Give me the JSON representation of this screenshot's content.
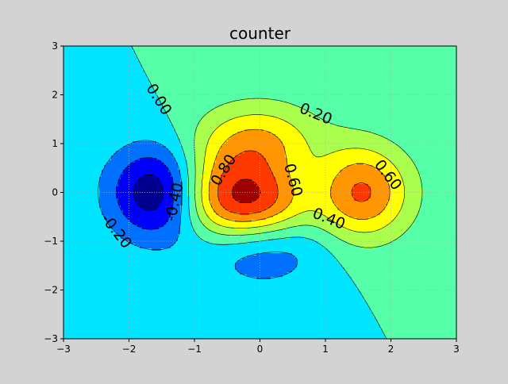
{
  "chart_data": {
    "type": "contour",
    "title": "counter",
    "xlabel": "",
    "ylabel": "",
    "xlim": [
      -3,
      3
    ],
    "ylim": [
      -3,
      3
    ],
    "grid": true,
    "x_ticks": [
      -3,
      -2,
      -1,
      0,
      1,
      2,
      3
    ],
    "x_tick_labels": [
      "−3",
      "−2",
      "−1",
      "0",
      "1",
      "2",
      "3"
    ],
    "y_ticks": [
      -3,
      -2,
      -1,
      0,
      1,
      2,
      3
    ],
    "y_tick_labels": [
      "−3",
      "−2",
      "−1",
      "0",
      "1",
      "2",
      "3"
    ],
    "levels": [
      -0.6,
      -0.4,
      -0.2,
      0.0,
      0.2,
      0.4,
      0.6,
      0.8,
      1.0
    ],
    "level_colors": [
      "#00008f",
      "#0000ff",
      "#0070ff",
      "#00e5ff",
      "#55ffa8",
      "#aaff4d",
      "#ffff00",
      "#ff9500",
      "#ff3800",
      "#a00000"
    ],
    "contour_labels": [
      {
        "text": "0.00",
        "x": -1.55,
        "y": 1.9,
        "angle": 58
      },
      {
        "text": "0.20",
        "x": 0.85,
        "y": 1.6,
        "angle": 22
      },
      {
        "text": "0.80",
        "x": -0.55,
        "y": 0.45,
        "angle": -58
      },
      {
        "text": "0.60",
        "x": 0.5,
        "y": 0.25,
        "angle": 75
      },
      {
        "text": "0.60",
        "x": 1.95,
        "y": 0.35,
        "angle": 52
      },
      {
        "text": "0.40",
        "x": 1.05,
        "y": -0.55,
        "angle": 22
      },
      {
        "text": "-0.40",
        "x": -1.3,
        "y": -0.2,
        "angle": -78
      },
      {
        "text": "-0.20",
        "x": -2.2,
        "y": -0.8,
        "angle": 52
      }
    ]
  }
}
